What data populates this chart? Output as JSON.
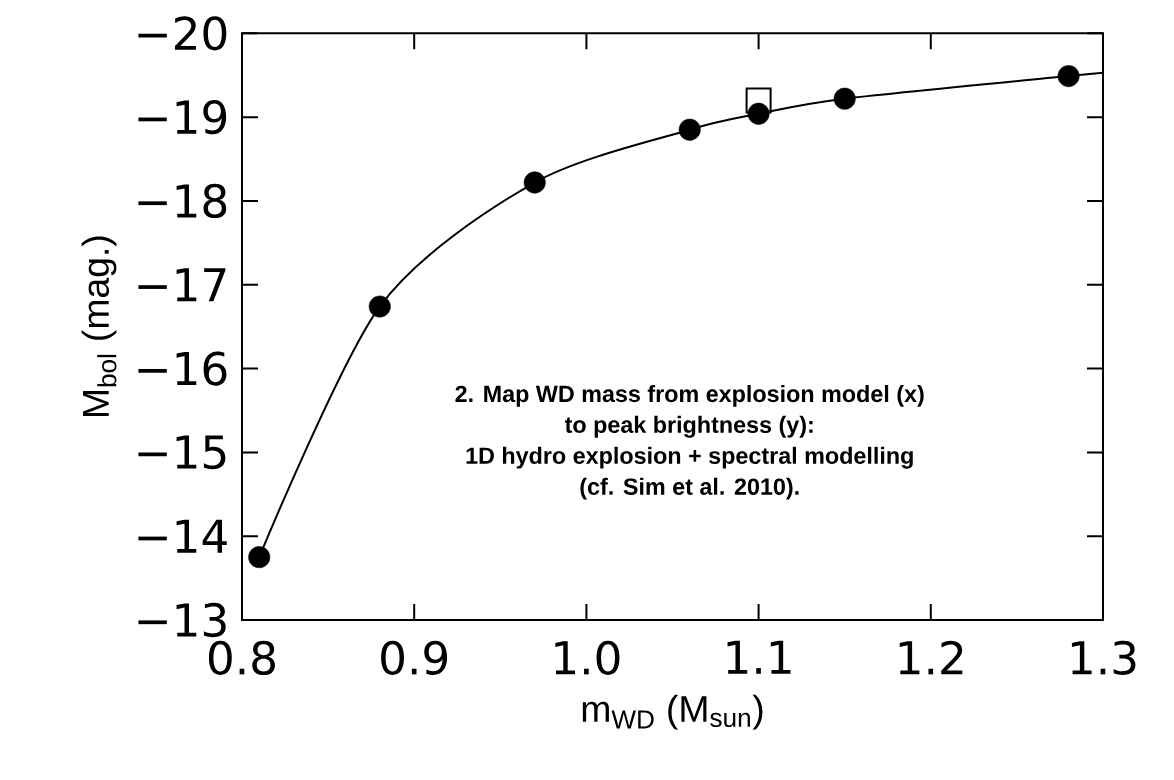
{
  "chart_data": {
    "type": "scatter",
    "xlabel": "m$_{WD}$ (M$_{sun}$)",
    "ylabel": "M$_{bol}$ (mag.)",
    "annotations": [
      "2. Map WD mass from explosion model (x)",
      "to peak brightness (y):",
      "1D hydro explosion + spectral modelling",
      "(cf. Sim et al. 2010)."
    ],
    "xlim": [
      0.8,
      1.3
    ],
    "xticks": [
      0.8,
      0.9,
      {
        "value": 1.0,
        "label": "1.0"
      },
      1.1,
      1.2,
      1.3
    ],
    "ylim": [
      -13,
      -20
    ],
    "yticks": [
      {
        "value": -20,
        "label": "−20"
      },
      {
        "value": -19,
        "label": "−19"
      },
      {
        "value": -18,
        "label": "−18"
      },
      {
        "value": -17,
        "label": "−17"
      },
      {
        "value": -16,
        "label": "−16"
      },
      {
        "value": -15,
        "label": "−15"
      },
      {
        "value": -14,
        "label": "−14"
      },
      {
        "value": -13,
        "label": "−13"
      }
    ],
    "grid": false,
    "legend": false,
    "series": [
      {
        "type": "line",
        "color": "#000000",
        "marker": "none",
        "line_style": "solid",
        "x": [
          0.81,
          0.88,
          0.97,
          1.06,
          1.1,
          1.15,
          1.28,
          1.3
        ],
        "values": [
          -13.75,
          -16.74,
          -18.22,
          -18.85,
          -19.04,
          -19.22,
          -19.49,
          -19.53
        ]
      },
      {
        "color": "#000000",
        "marker": "circle",
        "x": [
          0.81,
          0.88,
          0.97,
          1.06,
          1.1,
          1.15,
          1.28
        ],
        "values": [
          -13.75,
          -16.74,
          -18.22,
          -18.85,
          -19.04,
          -19.22,
          -19.49
        ]
      },
      {
        "color": "#000000",
        "marker": "square",
        "x": [
          1.1
        ],
        "values": [
          -19.2
        ]
      }
    ]
  }
}
